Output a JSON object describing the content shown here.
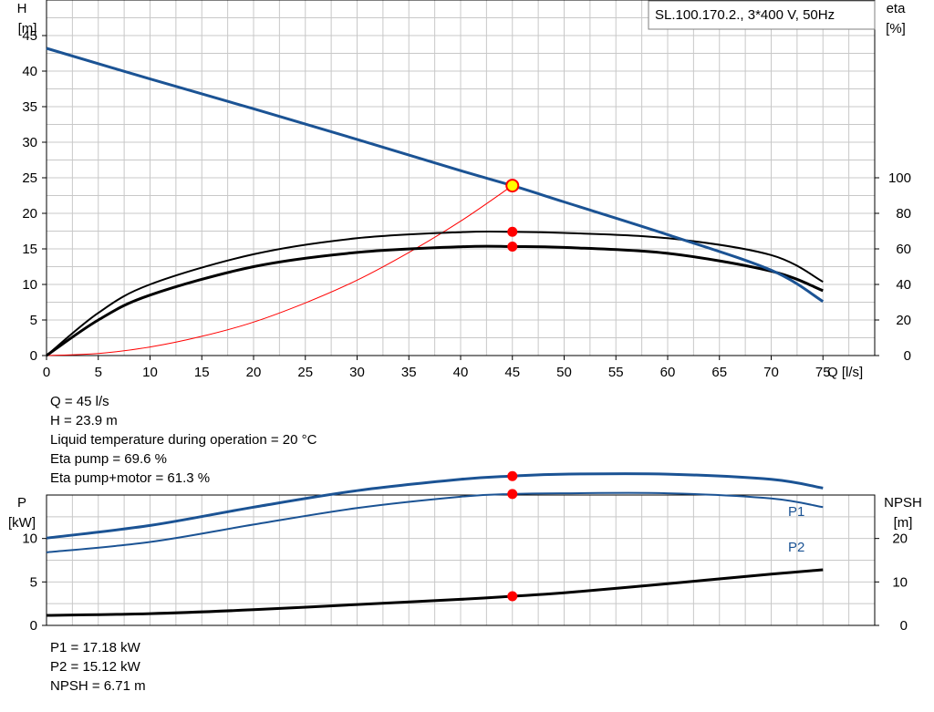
{
  "model_label": "SL.100.170.2., 3*400 V, 50Hz",
  "colors": {
    "head": "#1b5394",
    "eta": "#000000",
    "system": "#ff0000",
    "point": "#ff0000",
    "op_point": "#ffff00",
    "grid": "#c8c8c8"
  },
  "chart_data": [
    {
      "type": "line",
      "title": "",
      "xlabel": "Q [l/s]",
      "ylabel": "H [m]",
      "y2label": "eta [%]",
      "xlim": [
        0,
        80
      ],
      "ylim": [
        0,
        50
      ],
      "y2lim": [
        0,
        100
      ],
      "x_ticks": [
        0,
        5,
        10,
        15,
        20,
        25,
        30,
        35,
        40,
        45,
        50,
        55,
        60,
        65,
        70,
        75
      ],
      "y_ticks": [
        0,
        5,
        10,
        15,
        20,
        25,
        30,
        35,
        40,
        45
      ],
      "y2_ticks": [
        0,
        20,
        40,
        60,
        80,
        100
      ],
      "grid": true,
      "series": [
        {
          "name": "",
          "axis": "left",
          "x": [
            0,
            10,
            20,
            30,
            40,
            45,
            50,
            60,
            70,
            75
          ],
          "values": [
            43.2,
            38.9,
            34.7,
            30.4,
            26.0,
            23.9,
            21.6,
            17.0,
            12.0,
            7.6
          ]
        },
        {
          "name": "",
          "axis": "right",
          "x": [
            0,
            5,
            10,
            20,
            30,
            40,
            45,
            50,
            60,
            70,
            75
          ],
          "values": [
            0,
            24,
            40,
            57,
            66,
            69.4,
            69.6,
            69.0,
            66.0,
            56.5,
            41.5
          ]
        },
        {
          "name": "",
          "axis": "right",
          "x": [
            0,
            5,
            10,
            20,
            30,
            40,
            45,
            50,
            60,
            70,
            75
          ],
          "values": [
            0,
            20,
            34,
            50,
            58,
            61.2,
            61.3,
            60.8,
            57.5,
            47.5,
            36.5
          ]
        },
        {
          "name": "",
          "axis": "left",
          "x": [
            0,
            5,
            10,
            15,
            20,
            25,
            30,
            35,
            40,
            45
          ],
          "values": [
            0,
            0.3,
            1.2,
            2.7,
            4.7,
            7.4,
            10.6,
            14.5,
            18.9,
            23.9
          ]
        }
      ],
      "operating_point": {
        "x": 45,
        "y": 23.9
      },
      "point_markers": [
        {
          "x": 45,
          "eta": 69.6
        },
        {
          "x": 45,
          "eta": 61.3
        }
      ]
    },
    {
      "type": "line",
      "title": "",
      "xlabel": "",
      "ylabel": "P [kW]",
      "y2label": "NPSH [m]",
      "xlim": [
        0,
        80
      ],
      "ylim": [
        0,
        15
      ],
      "y2lim": [
        0,
        30
      ],
      "y_ticks": [
        0,
        5,
        10
      ],
      "y2_ticks": [
        0,
        10,
        20
      ],
      "grid": true,
      "series": [
        {
          "name": "P1",
          "axis": "left",
          "x": [
            0,
            10,
            20,
            30,
            40,
            45,
            50,
            60,
            70,
            75
          ],
          "values": [
            10.05,
            11.5,
            13.6,
            15.5,
            16.8,
            17.18,
            17.4,
            17.4,
            16.8,
            15.8
          ]
        },
        {
          "name": "P2",
          "axis": "left",
          "x": [
            0,
            10,
            20,
            30,
            40,
            45,
            50,
            60,
            70,
            75
          ],
          "values": [
            8.4,
            9.6,
            11.6,
            13.5,
            14.8,
            15.12,
            15.2,
            15.2,
            14.6,
            13.6
          ]
        },
        {
          "name": "",
          "axis": "right",
          "x": [
            0,
            10,
            20,
            30,
            40,
            45,
            50,
            60,
            70,
            75
          ],
          "values": [
            2.3,
            2.7,
            3.6,
            4.8,
            6.0,
            6.71,
            7.5,
            9.6,
            11.8,
            12.8
          ]
        }
      ],
      "point_markers": [
        {
          "x": 45,
          "P": 17.18
        },
        {
          "x": 45,
          "P": 15.12
        },
        {
          "x": 45,
          "npsh": 6.71
        }
      ]
    }
  ],
  "top_axis": {
    "left_label": "H",
    "left_unit": "[m]",
    "right_label": "eta",
    "right_unit": "[%]",
    "x_label": "Q [l/s]"
  },
  "bottom_axis": {
    "left_label": "P",
    "left_unit": "[kW]",
    "right_label": "NPSH",
    "right_unit": "[m]",
    "p1_label": "P1",
    "p2_label": "P2"
  },
  "info_top": [
    "Q = 45 l/s",
    "H = 23.9 m",
    "Liquid temperature during operation = 20 °C",
    "Eta pump = 69.6 %",
    "Eta pump+motor = 61.3 %"
  ],
  "info_bottom": [
    "P1 = 17.18 kW",
    "P2 = 15.12 kW",
    "NPSH = 6.71 m"
  ]
}
